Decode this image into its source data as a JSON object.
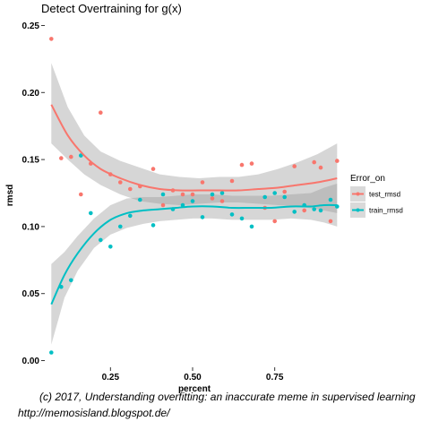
{
  "chart_data": {
    "type": "scatter",
    "title": "Detect Overtraining for g(x)",
    "xlabel": "percent",
    "ylabel": "rmsd",
    "xlim": [
      0.05,
      0.95
    ],
    "ylim": [
      -0.005,
      0.255
    ],
    "x_ticks": [
      0.25,
      0.5,
      0.75
    ],
    "x_tick_labels": [
      "0.25",
      "0.50",
      "0.75"
    ],
    "y_ticks": [
      0.0,
      0.05,
      0.1,
      0.15,
      0.2,
      0.25
    ],
    "y_tick_labels": [
      "0.00",
      "0.05",
      "0.10",
      "0.15",
      "0.20",
      "0.25"
    ],
    "grid": false,
    "legend": {
      "title": "Error_on",
      "position": "right"
    },
    "series": [
      {
        "name": "test_rmsd",
        "color": "#F8766D",
        "points": [
          [
            0.07,
            0.24
          ],
          [
            0.1,
            0.151
          ],
          [
            0.13,
            0.152
          ],
          [
            0.16,
            0.124
          ],
          [
            0.19,
            0.147
          ],
          [
            0.22,
            0.185
          ],
          [
            0.25,
            0.139
          ],
          [
            0.28,
            0.133
          ],
          [
            0.31,
            0.128
          ],
          [
            0.34,
            0.13
          ],
          [
            0.38,
            0.143
          ],
          [
            0.41,
            0.116
          ],
          [
            0.44,
            0.127
          ],
          [
            0.47,
            0.124
          ],
          [
            0.5,
            0.124
          ],
          [
            0.53,
            0.133
          ],
          [
            0.56,
            0.121
          ],
          [
            0.59,
            0.119
          ],
          [
            0.62,
            0.134
          ],
          [
            0.65,
            0.146
          ],
          [
            0.68,
            0.147
          ],
          [
            0.72,
            0.114
          ],
          [
            0.75,
            0.104
          ],
          [
            0.78,
            0.126
          ],
          [
            0.81,
            0.145
          ],
          [
            0.84,
            0.112
          ],
          [
            0.87,
            0.148
          ],
          [
            0.89,
            0.144
          ],
          [
            0.92,
            0.104
          ],
          [
            0.94,
            0.149
          ]
        ],
        "smooth": [
          [
            0.07,
            0.191
          ],
          [
            0.12,
            0.168
          ],
          [
            0.17,
            0.153
          ],
          [
            0.22,
            0.143
          ],
          [
            0.28,
            0.136
          ],
          [
            0.34,
            0.131
          ],
          [
            0.4,
            0.128
          ],
          [
            0.46,
            0.127
          ],
          [
            0.52,
            0.127
          ],
          [
            0.58,
            0.127
          ],
          [
            0.64,
            0.127
          ],
          [
            0.7,
            0.128
          ],
          [
            0.76,
            0.129
          ],
          [
            0.82,
            0.131
          ],
          [
            0.88,
            0.133
          ],
          [
            0.94,
            0.136
          ]
        ],
        "band_low": [
          [
            0.07,
            0.162
          ],
          [
            0.12,
            0.15
          ],
          [
            0.17,
            0.139
          ],
          [
            0.22,
            0.131
          ],
          [
            0.28,
            0.124
          ],
          [
            0.34,
            0.119
          ],
          [
            0.4,
            0.117
          ],
          [
            0.46,
            0.116
          ],
          [
            0.52,
            0.117
          ],
          [
            0.58,
            0.118
          ],
          [
            0.64,
            0.118
          ],
          [
            0.7,
            0.117
          ],
          [
            0.76,
            0.116
          ],
          [
            0.82,
            0.115
          ],
          [
            0.88,
            0.113
          ],
          [
            0.94,
            0.11
          ]
        ],
        "band_high": [
          [
            0.07,
            0.222
          ],
          [
            0.12,
            0.189
          ],
          [
            0.17,
            0.168
          ],
          [
            0.22,
            0.156
          ],
          [
            0.28,
            0.149
          ],
          [
            0.34,
            0.144
          ],
          [
            0.4,
            0.139
          ],
          [
            0.46,
            0.137
          ],
          [
            0.52,
            0.136
          ],
          [
            0.58,
            0.137
          ],
          [
            0.64,
            0.137
          ],
          [
            0.7,
            0.139
          ],
          [
            0.76,
            0.143
          ],
          [
            0.82,
            0.148
          ],
          [
            0.88,
            0.154
          ],
          [
            0.94,
            0.162
          ]
        ]
      },
      {
        "name": "train_rmsd",
        "color": "#00BFC4",
        "points": [
          [
            0.07,
            0.006
          ],
          [
            0.1,
            0.055
          ],
          [
            0.13,
            0.06
          ],
          [
            0.16,
            0.153
          ],
          [
            0.19,
            0.11
          ],
          [
            0.22,
            0.09
          ],
          [
            0.25,
            0.085
          ],
          [
            0.28,
            0.1
          ],
          [
            0.31,
            0.108
          ],
          [
            0.34,
            0.12
          ],
          [
            0.38,
            0.101
          ],
          [
            0.41,
            0.124
          ],
          [
            0.44,
            0.113
          ],
          [
            0.47,
            0.116
          ],
          [
            0.5,
            0.119
          ],
          [
            0.53,
            0.107
          ],
          [
            0.56,
            0.124
          ],
          [
            0.59,
            0.125
          ],
          [
            0.62,
            0.109
          ],
          [
            0.65,
            0.106
          ],
          [
            0.68,
            0.1
          ],
          [
            0.72,
            0.122
          ],
          [
            0.75,
            0.125
          ],
          [
            0.78,
            0.122
          ],
          [
            0.81,
            0.111
          ],
          [
            0.84,
            0.116
          ],
          [
            0.87,
            0.113
          ],
          [
            0.89,
            0.112
          ],
          [
            0.92,
            0.12
          ],
          [
            0.94,
            0.115
          ]
        ],
        "smooth": [
          [
            0.07,
            0.042
          ],
          [
            0.11,
            0.064
          ],
          [
            0.15,
            0.08
          ],
          [
            0.2,
            0.095
          ],
          [
            0.25,
            0.105
          ],
          [
            0.3,
            0.11
          ],
          [
            0.35,
            0.112
          ],
          [
            0.4,
            0.113
          ],
          [
            0.45,
            0.114
          ],
          [
            0.5,
            0.115
          ],
          [
            0.56,
            0.115
          ],
          [
            0.62,
            0.114
          ],
          [
            0.68,
            0.114
          ],
          [
            0.74,
            0.114
          ],
          [
            0.8,
            0.115
          ],
          [
            0.86,
            0.115
          ],
          [
            0.9,
            0.116
          ],
          [
            0.94,
            0.116
          ]
        ],
        "band_low": [
          [
            0.07,
            0.012
          ],
          [
            0.11,
            0.047
          ],
          [
            0.15,
            0.067
          ],
          [
            0.2,
            0.084
          ],
          [
            0.25,
            0.094
          ],
          [
            0.3,
            0.099
          ],
          [
            0.35,
            0.102
          ],
          [
            0.4,
            0.104
          ],
          [
            0.45,
            0.105
          ],
          [
            0.5,
            0.106
          ],
          [
            0.56,
            0.106
          ],
          [
            0.62,
            0.105
          ],
          [
            0.68,
            0.105
          ],
          [
            0.74,
            0.105
          ],
          [
            0.8,
            0.106
          ],
          [
            0.86,
            0.105
          ],
          [
            0.9,
            0.103
          ],
          [
            0.94,
            0.1
          ]
        ],
        "band_high": [
          [
            0.07,
            0.072
          ],
          [
            0.11,
            0.081
          ],
          [
            0.15,
            0.093
          ],
          [
            0.2,
            0.106
          ],
          [
            0.25,
            0.116
          ],
          [
            0.3,
            0.121
          ],
          [
            0.35,
            0.122
          ],
          [
            0.4,
            0.122
          ],
          [
            0.45,
            0.123
          ],
          [
            0.5,
            0.124
          ],
          [
            0.56,
            0.124
          ],
          [
            0.62,
            0.123
          ],
          [
            0.68,
            0.123
          ],
          [
            0.74,
            0.123
          ],
          [
            0.8,
            0.124
          ],
          [
            0.86,
            0.125
          ],
          [
            0.9,
            0.129
          ],
          [
            0.94,
            0.132
          ]
        ]
      }
    ]
  },
  "caption": {
    "line1": "(c) 2017, Understanding overfitting: an inaccurate meme in supervised learning",
    "line2": "http://memosisland.blogspot.de/"
  }
}
